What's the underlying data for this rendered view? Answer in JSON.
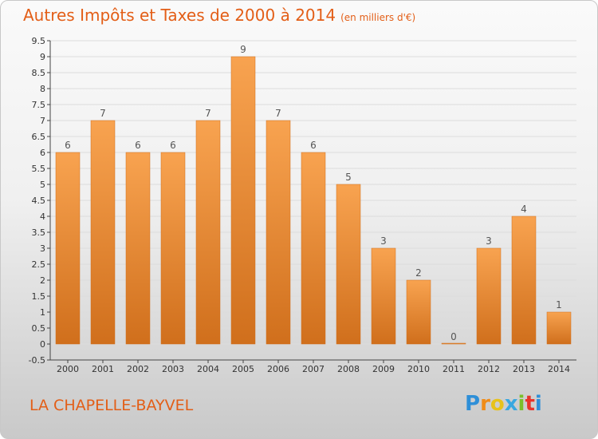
{
  "header": {
    "title": "Autres Impôts et Taxes de 2000 à 2014",
    "unit": "(en milliers d'€)"
  },
  "footer": {
    "commune": "LA CHAPELLE-BAYVEL",
    "logo_letters": [
      "P",
      "r",
      "o",
      "x",
      "i",
      "t",
      "i"
    ],
    "logo_colors": [
      "#2e8fd8",
      "#f08c18",
      "#e8c21a",
      "#3aa8e0",
      "#7bbf2a",
      "#e8342a",
      "#2e8fd8"
    ]
  },
  "colors": {
    "title": "#e35e17",
    "bar_top": "#f8a350",
    "bar_bottom": "#d06f1c",
    "grid": "#dcdcdc"
  },
  "chart_data": {
    "type": "bar",
    "categories": [
      "2000",
      "2001",
      "2002",
      "2003",
      "2004",
      "2005",
      "2006",
      "2007",
      "2008",
      "2009",
      "2010",
      "2011",
      "2012",
      "2013",
      "2014"
    ],
    "values": [
      6,
      7,
      6,
      6,
      7,
      9,
      7,
      6,
      5,
      3,
      2,
      0,
      3,
      4,
      1
    ],
    "value_labels": [
      "6",
      "7",
      "6",
      "6",
      "7",
      "9",
      "7",
      "6",
      "5",
      "3",
      "2",
      "0",
      "3",
      "4",
      "1"
    ],
    "y_ticks": [
      "-0.5",
      "0",
      "0.5",
      "1",
      "1.5",
      "2",
      "2.5",
      "3",
      "3.5",
      "4",
      "4.5",
      "5",
      "5.5",
      "6",
      "6.5",
      "7",
      "7.5",
      "8",
      "8.5",
      "9",
      "9.5"
    ],
    "ylim": [
      -0.5,
      9.5
    ],
    "grid": true,
    "legend": "none"
  }
}
